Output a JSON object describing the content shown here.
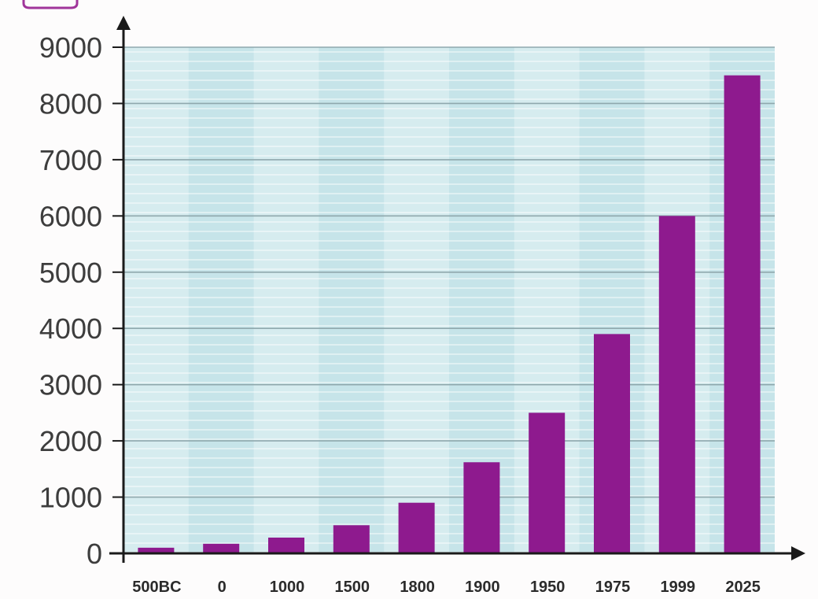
{
  "chart_data": {
    "type": "bar",
    "categories": [
      "500BC",
      "0",
      "1000",
      "1500",
      "1800",
      "1900",
      "1950",
      "1975",
      "1999",
      "2025"
    ],
    "values": [
      100,
      170,
      280,
      500,
      900,
      1620,
      2500,
      3900,
      6000,
      8500
    ],
    "y_ticks": [
      "0",
      "1000",
      "2000",
      "3000",
      "4000",
      "5000",
      "6000",
      "7000",
      "8000",
      "9000"
    ],
    "ylim": [
      0,
      9000
    ],
    "grid": true,
    "colors": {
      "bar": "#8e1a8e",
      "plot_bg": "#d6ecef",
      "plot_band": "#c3e3e8",
      "gridline": "#8fa8ad",
      "axis": "#1a1a1a"
    }
  }
}
